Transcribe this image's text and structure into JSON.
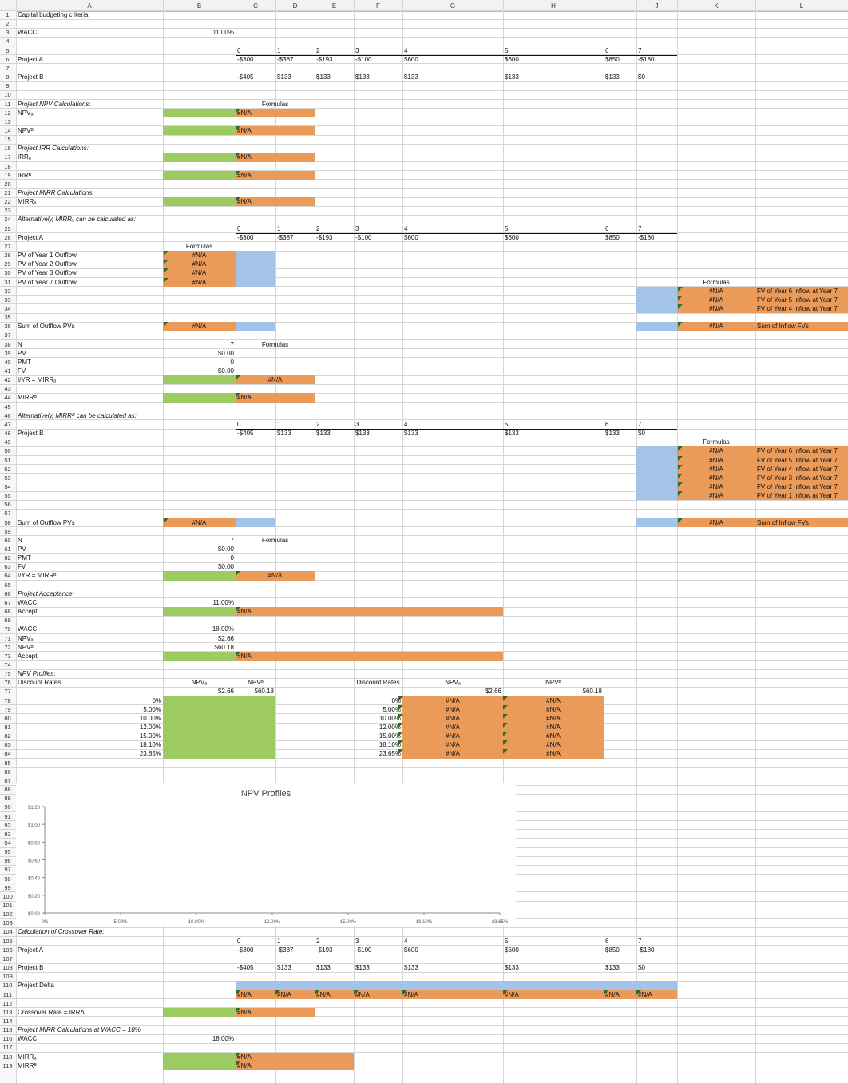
{
  "columns": [
    "A",
    "B",
    "C",
    "D",
    "E",
    "F",
    "G",
    "H",
    "I",
    "J",
    "K",
    "L"
  ],
  "rows_count": 119,
  "title": "Capital budgeting criteria",
  "wacc_label": "WACC",
  "wacc_value": "11.00%",
  "years": [
    "0",
    "1",
    "2",
    "3",
    "4",
    "5",
    "6",
    "7"
  ],
  "project_a_label": "Project A",
  "project_b_label": "Project B",
  "project_a": [
    "-$300",
    "-$387",
    "-$193",
    "-$100",
    "$600",
    "$600",
    "$850",
    "-$180"
  ],
  "project_b": [
    "-$405",
    "$133",
    "$133",
    "$133",
    "$133",
    "$133",
    "$133",
    "$0"
  ],
  "na": "#N/A",
  "formulas": "Formulas",
  "npv_calc_title": "Project NPV Calculations:",
  "npva": "NPVₐ",
  "npvb": "NPVᴮ",
  "irr_calc_title": "Project IRR Calculations:",
  "irra": "IRRₐ",
  "irrb": "IRRᴮ",
  "mirr_calc_title": "Project MIRR Calculations:",
  "mirra": "MIRRₐ",
  "mirrb": "MIRRᴮ",
  "alt_a": "Alternatively, MIRRₐ can be calculated as:",
  "alt_b": "Alternatively, MIRRᴮ can be calculated as:",
  "outflows_a": [
    "PV of Year 1 Outflow",
    "PV of Year 2 Outflow",
    "PV of Year 3 Outflow",
    "PV of Year 7 Outflow"
  ],
  "inflows_a": [
    "FV of Year 6 Inflow at Year 7",
    "FV of Year 5 Inflow at Year 7",
    "FV of Year 4 Inflow at Year 7"
  ],
  "inflows_b": [
    "FV of Year 6 Inflow at Year 7",
    "FV of Year 5 Inflow at Year 7",
    "FV of Year 4 Inflow at Year 7",
    "FV of Year 3 Inflow at Year 7",
    "FV of Year 2 Inflow at Year 7",
    "FV of Year 1 Inflow at Year 7"
  ],
  "sum_outflow": "Sum of Outflow PVs",
  "sum_inflow": "Sum of Inflow FVs",
  "tvm_labels": [
    "N",
    "PV",
    "PMT",
    "FV"
  ],
  "tvm_values": [
    "7",
    "$0.00",
    "0",
    "$0.00"
  ],
  "iyr_a": "I/YR = MIRRₐ",
  "iyr_b": "I/YR = MIRRᴮ",
  "accept_title": "Project Acceptance:",
  "accept_label": "Accept",
  "wacc2": "18.00%",
  "npva_val": "$2.66",
  "npvb_val": "$60.18",
  "profiles_title": "NPV Profiles:",
  "discount_rates": "Discount Rates",
  "rates": [
    "0%",
    "5.00%",
    "10.00%",
    "12.00%",
    "15.00%",
    "18.10%",
    "23.65%"
  ],
  "chart_data": {
    "type": "line",
    "title": "NPV Profiles",
    "xlabel": "",
    "ylabel": "",
    "categories": [
      "0%",
      "5.00%",
      "10.00%",
      "12.00%",
      "15.00%",
      "18.10%",
      "23.65%"
    ],
    "y_ticks": [
      "$0.00",
      "$0.20",
      "$0.40",
      "$0.60",
      "$0.80",
      "$1.00",
      "$1.20"
    ],
    "ylim": [
      0,
      1.2
    ],
    "series": []
  },
  "crossover_title": "Calculation of Crossover Rate:",
  "delta_label": "Project Delta",
  "crossover_label": "Crossover Rate = IRRΔ",
  "mirr18_title": "Project MIRR Calculations at WACC = 18%",
  "colors": {
    "green": "#9dcb61",
    "orange": "#eb9b59",
    "blue": "#a3c4e8",
    "grid": "#d6d6d6"
  }
}
